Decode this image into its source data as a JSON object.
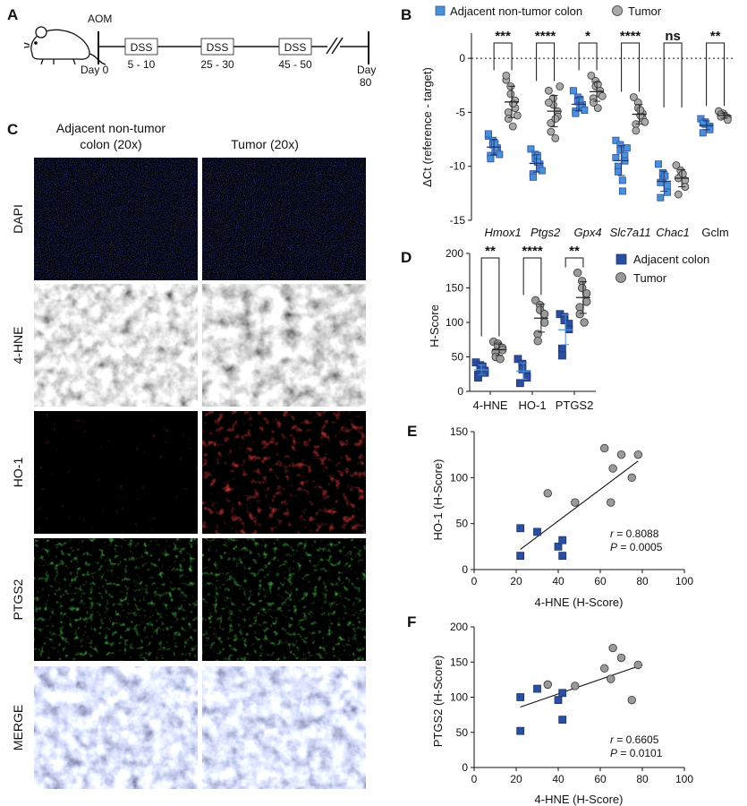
{
  "panelA": {
    "letter": "A",
    "aom_label": "AOM",
    "day0_label": "Day 0",
    "day80_label": "Day",
    "day80_number": "80",
    "dss_boxes": [
      {
        "label": "DSS",
        "days": "5 - 10"
      },
      {
        "label": "DSS",
        "days": "25 - 30"
      },
      {
        "label": "DSS",
        "days": "45 - 50"
      }
    ]
  },
  "panelB": {
    "letter": "B",
    "legend": [
      "Adjacent non-tumor colon",
      "Tumor"
    ],
    "ylabel": "ΔCt (reference - target)",
    "ylim": [
      -15,
      2
    ],
    "yticks": [
      0,
      -5,
      -10,
      -15
    ],
    "colors": {
      "adjacent": "#4a90d9",
      "tumor": "#a9a9a9"
    },
    "genes": [
      {
        "name": "Hmox1",
        "italic": true,
        "sig": "***",
        "adjacent": [
          -7.2,
          -7.6,
          -8.0,
          -8.3,
          -8.7,
          -9.0,
          -9.3,
          -7.9,
          -8.5,
          -8.9,
          -7.0
        ],
        "tumor": [
          -2.0,
          -2.6,
          -3.3,
          -3.9,
          -4.6,
          -5.0,
          -5.6,
          -6.3,
          -4.2,
          -5.3,
          -1.6
        ]
      },
      {
        "name": "Ptgs2",
        "italic": true,
        "sig": "****",
        "adjacent": [
          -8.4,
          -8.9,
          -9.3,
          -9.8,
          -10.2,
          -10.7,
          -11.0,
          -9.0,
          -9.6,
          -10.4
        ],
        "tumor": [
          -3.0,
          -3.7,
          -4.3,
          -4.9,
          -5.4,
          -6.0,
          -6.8,
          -7.4,
          -5.6,
          -2.6,
          -4.1
        ]
      },
      {
        "name": "Gpx4",
        "italic": true,
        "sig": "*",
        "adjacent": [
          -3.0,
          -3.6,
          -4.0,
          -4.3,
          -4.6,
          -4.9,
          -5.1,
          -4.4,
          -3.8,
          -4.8
        ],
        "tumor": [
          -1.6,
          -2.1,
          -2.6,
          -3.0,
          -3.3,
          -3.7,
          -4.1,
          -4.6,
          -2.4,
          -3.5
        ]
      },
      {
        "name": "Slc7a11",
        "italic": true,
        "sig": "****",
        "adjacent": [
          -7.6,
          -8.0,
          -8.5,
          -9.0,
          -9.5,
          -10.0,
          -10.5,
          -11.3,
          -12.3,
          -8.3,
          -9.2
        ],
        "tumor": [
          -3.6,
          -4.1,
          -4.6,
          -5.1,
          -5.6,
          -6.1,
          -6.7,
          -5.3,
          -4.8,
          -5.9
        ]
      },
      {
        "name": "Chac1",
        "italic": true,
        "sig": "ns",
        "adjacent": [
          -9.8,
          -10.6,
          -11.2,
          -11.8,
          -12.4,
          -12.9,
          -11.5,
          -10.9
        ],
        "tumor": [
          -9.9,
          -10.4,
          -10.9,
          -11.3,
          -11.9,
          -12.6,
          -11.1,
          -10.7
        ]
      },
      {
        "name": "Gclm",
        "italic": false,
        "sig": "**",
        "adjacent": [
          -5.6,
          -5.9,
          -6.1,
          -6.3,
          -6.6,
          -6.9,
          -6.0
        ],
        "tumor": [
          -4.9,
          -5.1,
          -5.3,
          -5.5,
          -5.7,
          -5.2,
          -5.4
        ]
      }
    ]
  },
  "panelC": {
    "letter": "C",
    "col_labels": [
      [
        "Adjacent non-tumor",
        "colon (20x)"
      ],
      [
        "Tumor (20x)"
      ]
    ],
    "row_labels": [
      "DAPI",
      "4-HNE",
      "HO-1",
      "PTGS2",
      "MERGE"
    ]
  },
  "panelD": {
    "letter": "D",
    "legend": [
      "Adjacent colon",
      "Tumor"
    ],
    "ylabel": "H-Score",
    "ylim": [
      0,
      200
    ],
    "yticks": [
      0,
      50,
      100,
      150,
      200
    ],
    "colors": {
      "adjacent": "#2b4f9e",
      "tumor": "#9a9a9a"
    },
    "groups": [
      {
        "name": "4-HNE",
        "sig": "**",
        "adjacent": [
          42,
          38,
          33,
          30,
          27,
          24,
          20,
          36
        ],
        "tumor": [
          72,
          69,
          66,
          63,
          60,
          57,
          50,
          47
        ]
      },
      {
        "name": "HO-1",
        "sig": "****",
        "adjacent": [
          47,
          40,
          32,
          25,
          20,
          12
        ],
        "tumor": [
          132,
          125,
          118,
          112,
          100,
          83,
          73
        ]
      },
      {
        "name": "PTGS2",
        "sig": "**",
        "adjacent": [
          112,
          108,
          103,
          98,
          90,
          62,
          52
        ],
        "tumor": [
          172,
          160,
          150,
          142,
          130,
          122,
          112,
          100
        ]
      }
    ]
  },
  "panelE": {
    "letter": "E",
    "xlabel": "4-HNE (H-Score)",
    "ylabel": "HO-1 (H-Score)",
    "xlim": [
      0,
      100
    ],
    "ylim": [
      0,
      150
    ],
    "xticks": [
      0,
      20,
      40,
      60,
      80,
      100
    ],
    "yticks": [
      0,
      50,
      100,
      150
    ],
    "r_prefix": "r",
    "r_value": " = 0.8088",
    "p_prefix": "P",
    "p_value": " = 0.0005",
    "fit": {
      "x": [
        22,
        78
      ],
      "y": [
        22,
        118
      ]
    },
    "adjacent": [
      [
        22,
        45
      ],
      [
        22,
        15
      ],
      [
        30,
        41
      ],
      [
        40,
        25
      ],
      [
        42,
        15
      ],
      [
        42,
        32
      ]
    ],
    "tumor": [
      [
        35,
        83
      ],
      [
        48,
        73
      ],
      [
        62,
        132
      ],
      [
        65,
        73
      ],
      [
        66,
        110
      ],
      [
        70,
        125
      ],
      [
        75,
        100
      ],
      [
        78,
        125
      ]
    ]
  },
  "panelF": {
    "letter": "F",
    "xlabel": "4-HNE (H-Score)",
    "ylabel": "PTGS2 (H-Score)",
    "xlim": [
      0,
      100
    ],
    "ylim": [
      0,
      200
    ],
    "xticks": [
      0,
      20,
      40,
      60,
      80,
      100
    ],
    "yticks": [
      0,
      50,
      100,
      150,
      200
    ],
    "r_prefix": "r",
    "r_value": " = 0.6605",
    "p_prefix": "P",
    "p_value": " = 0.0101",
    "fit": {
      "x": [
        22,
        78
      ],
      "y": [
        86,
        144
      ]
    },
    "adjacent": [
      [
        22,
        100
      ],
      [
        22,
        52
      ],
      [
        30,
        112
      ],
      [
        40,
        96
      ],
      [
        42,
        106
      ],
      [
        42,
        68
      ]
    ],
    "tumor": [
      [
        35,
        118
      ],
      [
        48,
        116
      ],
      [
        62,
        141
      ],
      [
        65,
        126
      ],
      [
        66,
        170
      ],
      [
        70,
        156
      ],
      [
        75,
        96
      ],
      [
        78,
        146
      ]
    ]
  }
}
